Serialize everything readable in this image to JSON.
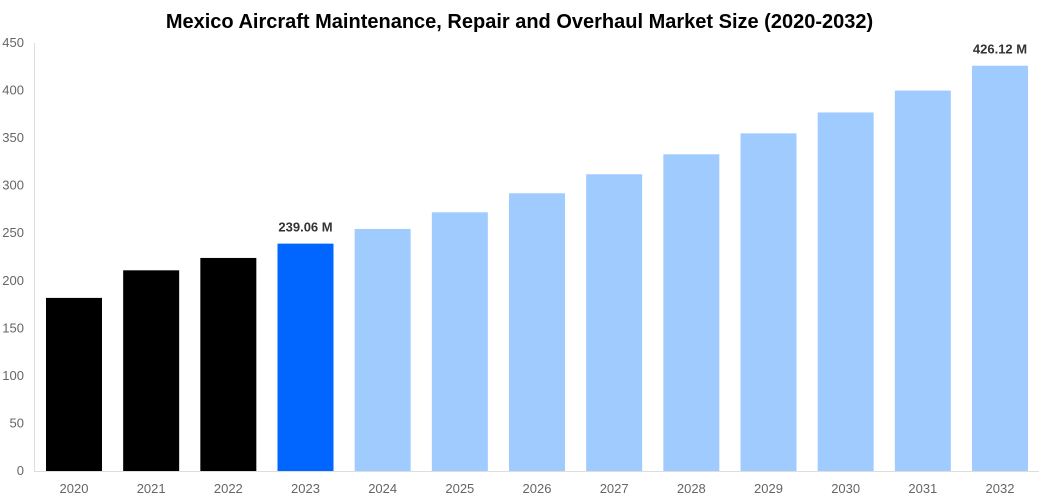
{
  "chart_data": {
    "type": "bar",
    "title": "Mexico Aircraft Maintenance, Repair and Overhaul Market Size (2020-2032)",
    "xlabel": "",
    "ylabel": "",
    "categories": [
      "2020",
      "2021",
      "2022",
      "2023",
      "2024",
      "2025",
      "2026",
      "2027",
      "2028",
      "2029",
      "2030",
      "2031",
      "2032"
    ],
    "values": [
      182,
      211,
      224,
      239.06,
      254.5,
      272,
      292,
      312,
      333,
      355,
      377,
      400,
      426.12
    ],
    "colors": [
      "#000000",
      "#000000",
      "#000000",
      "#0066ff",
      "#a0cbff",
      "#a0cbff",
      "#a0cbff",
      "#a0cbff",
      "#a0cbff",
      "#a0cbff",
      "#a0cbff",
      "#a0cbff",
      "#a0cbff"
    ],
    "data_labels": {
      "3": "239.06 M",
      "12": "426.12 M"
    },
    "ylim": [
      0,
      450
    ],
    "yticks": [
      0,
      50,
      100,
      150,
      200,
      250,
      300,
      350,
      400,
      450
    ],
    "grid": false,
    "legend": "none"
  }
}
